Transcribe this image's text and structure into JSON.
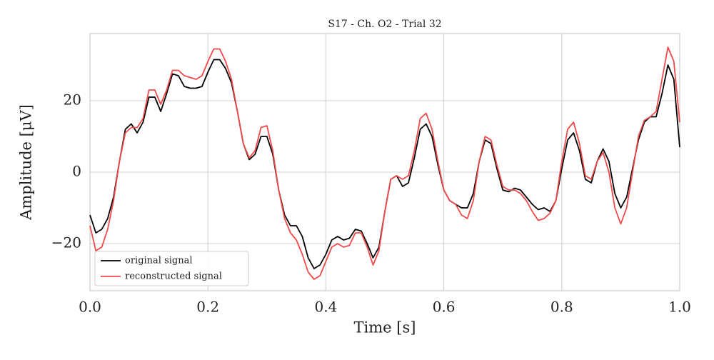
{
  "chart_data": {
    "type": "line",
    "title": "S17 - Ch. O2 - Trial 32",
    "x_label": "Time [s]",
    "y_label": "Amplitude [μV]",
    "x": [
      0,
      0.01,
      0.02,
      0.03,
      0.04,
      0.05,
      0.06,
      0.07,
      0.08,
      0.09,
      0.1,
      0.11,
      0.12,
      0.13,
      0.14,
      0.15,
      0.16,
      0.17,
      0.18,
      0.19,
      0.2,
      0.21,
      0.22,
      0.23,
      0.24,
      0.25,
      0.26,
      0.27,
      0.28,
      0.29,
      0.3,
      0.31,
      0.32,
      0.33,
      0.34,
      0.35,
      0.36,
      0.37,
      0.38,
      0.39,
      0.4,
      0.41,
      0.42,
      0.43,
      0.44,
      0.45,
      0.46,
      0.47,
      0.48,
      0.49,
      0.5,
      0.51,
      0.52,
      0.53,
      0.54,
      0.55,
      0.56,
      0.57,
      0.58,
      0.59,
      0.6,
      0.61,
      0.62,
      0.63,
      0.64,
      0.65,
      0.66,
      0.67,
      0.68,
      0.69,
      0.7,
      0.71,
      0.72,
      0.73,
      0.74,
      0.75,
      0.76,
      0.77,
      0.78,
      0.79,
      0.8,
      0.81,
      0.82,
      0.83,
      0.84,
      0.85,
      0.86,
      0.87,
      0.88,
      0.89,
      0.9,
      0.91,
      0.92,
      0.93,
      0.94,
      0.95,
      0.96,
      0.97,
      0.98,
      0.99,
      1
    ],
    "series": [
      {
        "name": "original signal",
        "color": "#000000",
        "values": [
          -12,
          -17,
          -16,
          -13,
          -7,
          3,
          12,
          13.5,
          11,
          14,
          21,
          21,
          17,
          22,
          27.5,
          27,
          24,
          23.5,
          23.5,
          24,
          28,
          31.5,
          31.5,
          29,
          25,
          17,
          8,
          3.5,
          5,
          10,
          10,
          5,
          -5,
          -12,
          -15,
          -15,
          -18,
          -24,
          -27,
          -26,
          -23,
          -19,
          -18,
          -19,
          -18.5,
          -16,
          -16.5,
          -20,
          -24,
          -21,
          -11,
          -2,
          -1,
          -4,
          -3,
          4,
          12,
          13.5,
          10,
          2,
          -5,
          -8,
          -9,
          -10,
          -10,
          -6,
          3,
          9,
          8,
          1,
          -5,
          -5.5,
          -4.5,
          -5,
          -7,
          -9,
          -10.5,
          -10,
          -11,
          -8,
          1,
          9,
          11,
          6,
          -2,
          -3,
          3,
          6.5,
          3,
          -6,
          -10,
          -7,
          1,
          9,
          14,
          15.5,
          15.5,
          22,
          30,
          26,
          7
        ]
      },
      {
        "name": "reconstructed signal",
        "color": "#f04a4a",
        "values": [
          -15,
          -22,
          -21,
          -16,
          -8,
          3,
          11,
          12.5,
          12.5,
          15,
          23,
          23,
          19,
          23,
          28.5,
          28.5,
          27,
          26.5,
          26,
          27,
          31,
          34.5,
          34.5,
          31,
          26,
          17,
          8,
          4,
          6,
          12.5,
          13,
          6,
          -5,
          -13,
          -17,
          -19,
          -23,
          -28,
          -30,
          -29,
          -25,
          -21,
          -20,
          -21,
          -20.5,
          -17,
          -17,
          -21,
          -26,
          -22,
          -11,
          -2,
          -1,
          -2,
          -1,
          6,
          15,
          16.5,
          12,
          3,
          -5,
          -8,
          -9,
          -12,
          -13,
          -8,
          3,
          10,
          9,
          2,
          -4,
          -5,
          -5,
          -6,
          -8,
          -11,
          -13.5,
          -13,
          -11.5,
          -8,
          3,
          12,
          14,
          8,
          -1,
          -2,
          3,
          5.5,
          0,
          -10,
          -14.5,
          -10,
          0,
          10,
          14.5,
          15.5,
          17,
          26,
          35,
          31,
          14
        ]
      }
    ],
    "xlim": [
      0,
      1
    ],
    "ylim": [
      -33.2,
      38.8
    ],
    "xticks": [
      {
        "value": 0,
        "label": "0.0"
      },
      0.2,
      0.4,
      0.6,
      0.8,
      {
        "value": 1,
        "label": "1.0"
      }
    ],
    "yticks": [
      {
        "value": -20,
        "label": "−20"
      },
      0,
      20
    ],
    "grid": true,
    "legend": "lower left"
  }
}
